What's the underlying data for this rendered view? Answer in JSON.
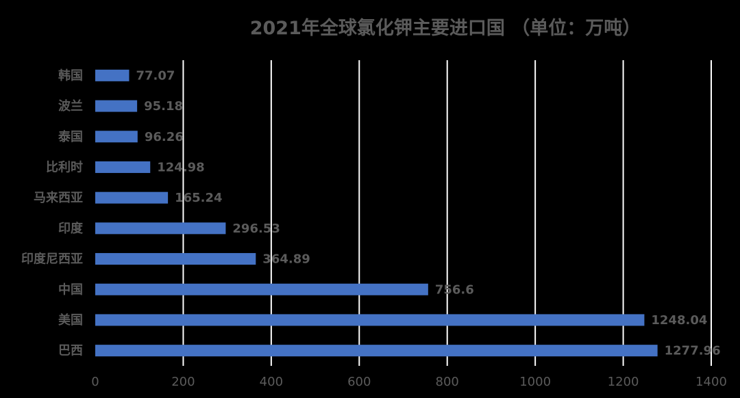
{
  "chart_data": {
    "type": "bar",
    "orientation": "horizontal",
    "title": "2021年全球氯化钾主要进口国 （单位：万吨）",
    "categories": [
      "韩国",
      "波兰",
      "泰国",
      "比利时",
      "马来西亚",
      "印度",
      "印度尼西亚",
      "中国",
      "美国",
      "巴西"
    ],
    "values": [
      77.07,
      95.18,
      96.26,
      124.98,
      165.24,
      296.53,
      364.89,
      756.6,
      1248.04,
      1277.96
    ],
    "value_labels": [
      "77.07",
      "95.18",
      "96.26",
      "124.98",
      "165.24",
      "296.53",
      "364.89",
      "756.6",
      "1248.04",
      "1277.96"
    ],
    "xlim": [
      0,
      1400
    ],
    "x_ticks": [
      0,
      200,
      400,
      600,
      800,
      1000,
      1200,
      1400
    ],
    "grid": "vertical",
    "legend": "none",
    "colors": {
      "bar": "#4472c4",
      "background": "#000000",
      "grid": "#ffffff",
      "text": "#5b5b5b"
    }
  }
}
